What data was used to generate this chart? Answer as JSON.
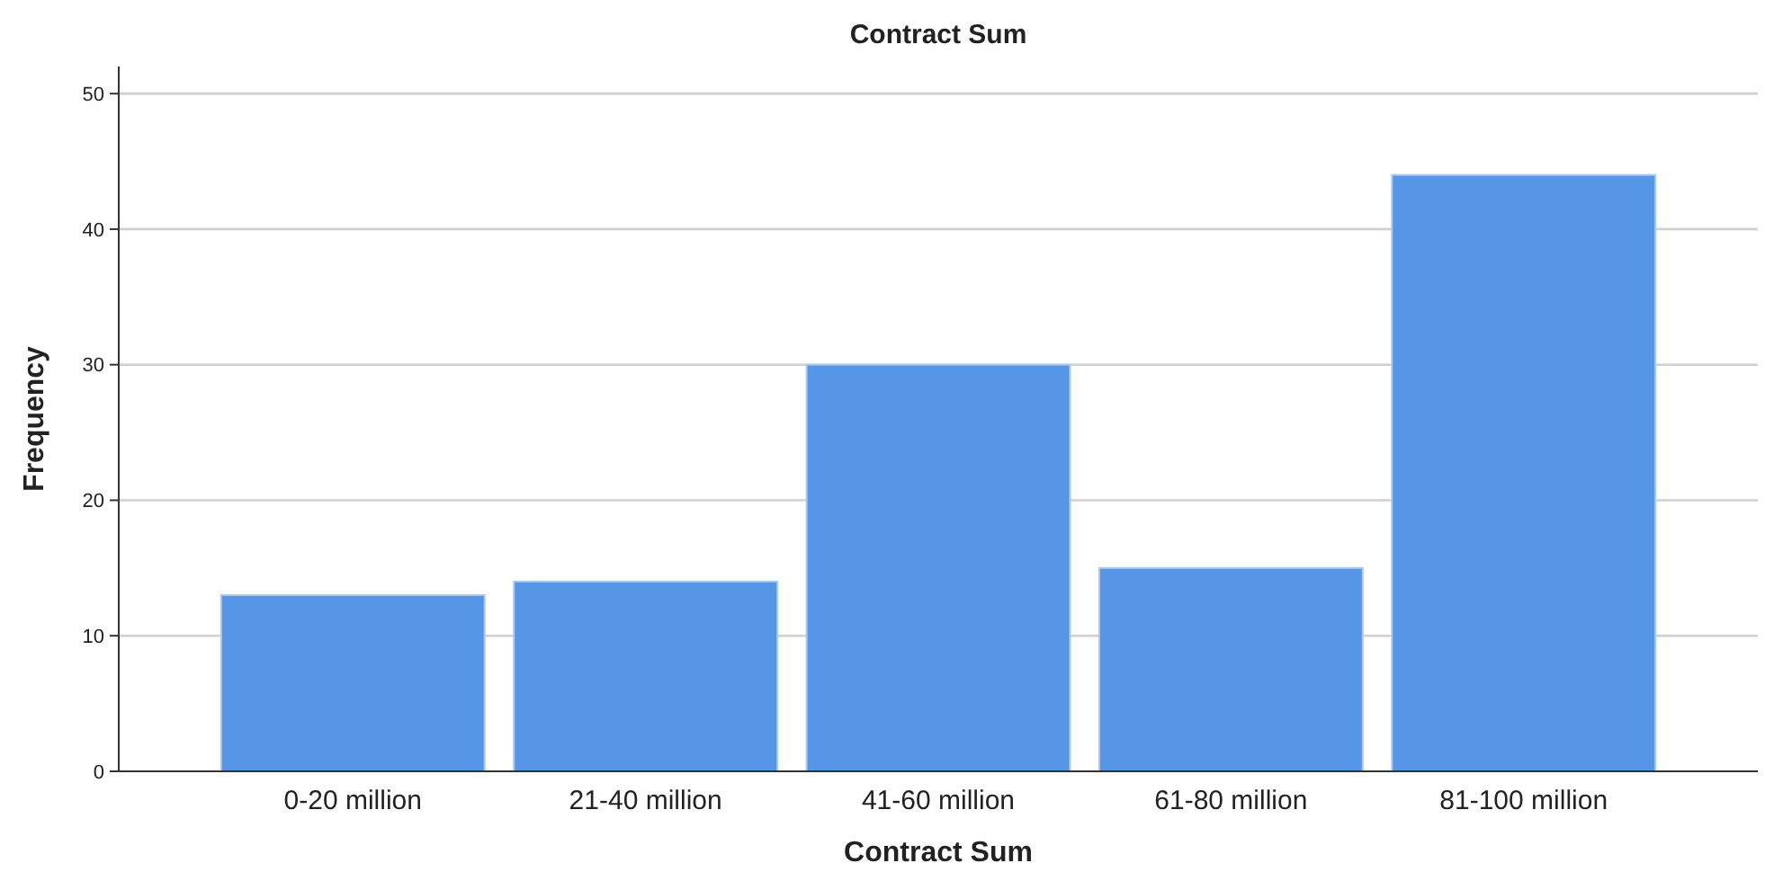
{
  "chart_data": {
    "type": "bar",
    "title": "Contract Sum",
    "xlabel": "Contract Sum",
    "ylabel": "Frequency",
    "categories": [
      "0-20 million",
      "21-40 million",
      "41-60 million",
      "61-80 million",
      "81-100 million"
    ],
    "values": [
      13,
      14,
      30,
      15,
      44
    ],
    "color": "#5596e6",
    "ylim": [
      0,
      52
    ],
    "yticks": [
      0,
      10,
      20,
      30,
      40,
      50
    ],
    "grid": "y"
  }
}
